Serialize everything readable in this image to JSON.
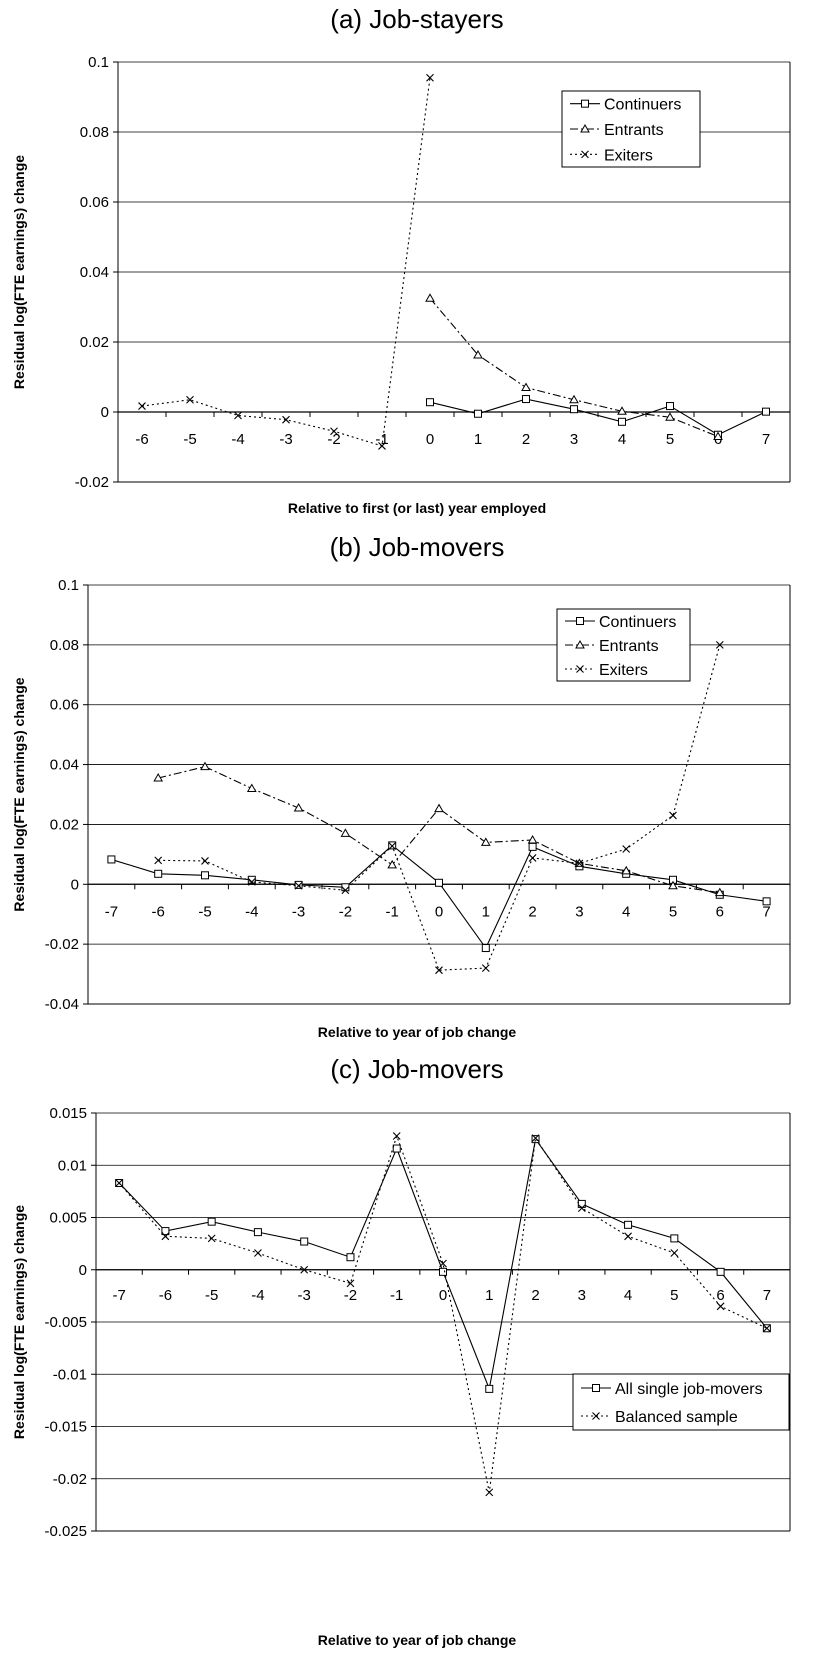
{
  "chart_data": [
    {
      "type": "line",
      "title": "(a) Job-stayers",
      "xlabel": "Relative to first (or last) year employed",
      "ylabel": "Residual log(FTE earnings) change",
      "x": [
        -6,
        -5,
        -4,
        -3,
        -2,
        -1,
        0,
        1,
        2,
        3,
        4,
        5,
        6,
        7
      ],
      "y_ticks": [
        "-0.02",
        "0",
        "0.02",
        "0.04",
        "0.06",
        "0.08",
        "0.1"
      ],
      "ylim": [
        -0.02,
        0.1
      ],
      "grid": true,
      "legend": "top-right",
      "series": [
        {
          "name": "Continuers",
          "marker": "square",
          "dash": "solid",
          "points": [
            [
              0,
              0.0028
            ],
            [
              1,
              -0.0005
            ],
            [
              2,
              0.0037
            ],
            [
              3,
              0.0008
            ],
            [
              4,
              -0.0028
            ],
            [
              5,
              0.0017
            ],
            [
              6,
              -0.0065
            ],
            [
              7,
              0.0001
            ]
          ]
        },
        {
          "name": "Entrants",
          "marker": "triangle",
          "dash": "dashdot",
          "points": [
            [
              0,
              0.0325
            ],
            [
              1,
              0.0163
            ],
            [
              2,
              0.007
            ],
            [
              3,
              0.0035
            ],
            [
              4,
              0.0002
            ],
            [
              5,
              -0.0015
            ],
            [
              6,
              -0.007
            ]
          ]
        },
        {
          "name": "Exiters",
          "marker": "x",
          "dash": "dotted",
          "points": [
            [
              -6,
              0.0017
            ],
            [
              -5,
              0.0035
            ],
            [
              -4,
              -0.001
            ],
            [
              -3,
              -0.0022
            ],
            [
              -2,
              -0.0055
            ],
            [
              -1,
              -0.0097
            ],
            [
              0,
              0.0955
            ]
          ]
        }
      ]
    },
    {
      "type": "line",
      "title": "(b) Job-movers",
      "xlabel": "Relative to year of job change",
      "ylabel": "Residual log(FTE earnings) change",
      "x": [
        -7,
        -6,
        -5,
        -4,
        -3,
        -2,
        -1,
        0,
        1,
        2,
        3,
        4,
        5,
        6,
        7
      ],
      "y_ticks": [
        "-0.04",
        "-0.02",
        "0",
        "0.02",
        "0.04",
        "0.06",
        "0.08",
        "0.1"
      ],
      "ylim": [
        -0.04,
        0.1
      ],
      "grid": true,
      "legend": "top-right",
      "series": [
        {
          "name": "Continuers",
          "marker": "square",
          "dash": "solid",
          "points": [
            [
              -7,
              0.0083
            ],
            [
              -6,
              0.0035
            ],
            [
              -5,
              0.003
            ],
            [
              -4,
              0.0015
            ],
            [
              -3,
              -0.0002
            ],
            [
              -2,
              -0.001
            ],
            [
              -1,
              0.013
            ],
            [
              0,
              0.0005
            ],
            [
              1,
              -0.0213
            ],
            [
              2,
              0.0125
            ],
            [
              3,
              0.006
            ],
            [
              4,
              0.0035
            ],
            [
              5,
              0.0015
            ],
            [
              6,
              -0.0035
            ],
            [
              7,
              -0.0057
            ]
          ]
        },
        {
          "name": "Entrants",
          "marker": "triangle",
          "dash": "dashdot",
          "points": [
            [
              -6,
              0.0355
            ],
            [
              -5,
              0.0393
            ],
            [
              -4,
              0.032
            ],
            [
              -3,
              0.0255
            ],
            [
              -2,
              0.017
            ],
            [
              -1,
              0.0065
            ],
            [
              0,
              0.0253
            ],
            [
              1,
              0.014
            ],
            [
              2,
              0.0148
            ],
            [
              3,
              0.007
            ],
            [
              4,
              0.0045
            ],
            [
              5,
              -0.0005
            ],
            [
              6,
              -0.0028
            ]
          ]
        },
        {
          "name": "Exiters",
          "marker": "x",
          "dash": "dotted",
          "points": [
            [
              -6,
              0.008
            ],
            [
              -5,
              0.0078
            ],
            [
              -4,
              0.0008
            ],
            [
              -3,
              -0.0005
            ],
            [
              -2,
              -0.002
            ],
            [
              -1,
              0.0128
            ],
            [
              0,
              -0.0287
            ],
            [
              1,
              -0.028
            ],
            [
              2,
              0.0088
            ],
            [
              3,
              0.007
            ],
            [
              4,
              0.0118
            ],
            [
              5,
              0.023
            ],
            [
              6,
              0.08
            ]
          ]
        }
      ]
    },
    {
      "type": "line",
      "title": "(c) Job-movers",
      "xlabel": "Relative to year of job change",
      "ylabel": "Residual log(FTE earnings) change",
      "x": [
        -7,
        -6,
        -5,
        -4,
        -3,
        -2,
        -1,
        0,
        1,
        2,
        3,
        4,
        5,
        6,
        7
      ],
      "y_ticks": [
        "-0.025",
        "-0.02",
        "-0.015",
        "-0.01",
        "-0.005",
        "0",
        "0.005",
        "0.01",
        "0.015"
      ],
      "ylim": [
        -0.025,
        0.015
      ],
      "grid": true,
      "legend": "bottom-right",
      "series": [
        {
          "name": "All single job-movers",
          "marker": "square",
          "dash": "solid",
          "points": [
            [
              -7,
              0.0083
            ],
            [
              -6,
              0.0037
            ],
            [
              -5,
              0.0046
            ],
            [
              -4,
              0.0036
            ],
            [
              -3,
              0.0027
            ],
            [
              -2,
              0.0012
            ],
            [
              -1,
              0.0116
            ],
            [
              0,
              -0.0002
            ],
            [
              1,
              -0.0114
            ],
            [
              2,
              0.0125
            ],
            [
              3,
              0.0063
            ],
            [
              4,
              0.0043
            ],
            [
              5,
              0.003
            ],
            [
              6,
              -0.0002
            ],
            [
              7,
              -0.0056
            ]
          ]
        },
        {
          "name": "Balanced sample",
          "marker": "x",
          "dash": "dotted",
          "points": [
            [
              -7,
              0.0083
            ],
            [
              -6,
              0.0032
            ],
            [
              -5,
              0.003
            ],
            [
              -4,
              0.0016
            ],
            [
              -3,
              0.0
            ],
            [
              -2,
              -0.0013
            ],
            [
              -1,
              0.0128
            ],
            [
              0,
              0.0006
            ],
            [
              1,
              -0.0213
            ],
            [
              2,
              0.0126
            ],
            [
              3,
              0.0059
            ],
            [
              4,
              0.0032
            ],
            [
              5,
              0.0016
            ],
            [
              6,
              -0.0035
            ],
            [
              7,
              -0.0056
            ]
          ]
        }
      ]
    }
  ]
}
